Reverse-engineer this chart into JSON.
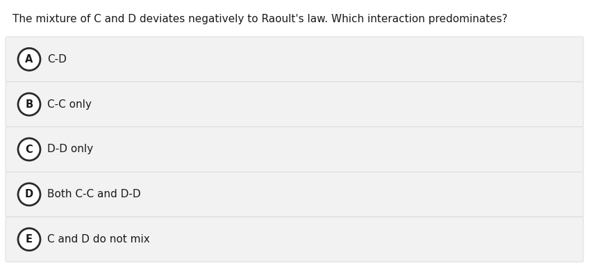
{
  "title": "The mixture of C and D deviates negatively to Raoult's law. Which interaction predominates?",
  "title_fontsize": 11.0,
  "title_color": "#1a1a1a",
  "background_color": "#ffffff",
  "option_bg_color": "#f2f2f2",
  "option_border_color": "#d8d8d8",
  "options": [
    {
      "label": "A",
      "text": "C-D"
    },
    {
      "label": "B",
      "text": "C-C only"
    },
    {
      "label": "C",
      "text": "D-D only"
    },
    {
      "label": "D",
      "text": "Both C-C and D-D"
    },
    {
      "label": "E",
      "text": "C and D do not mix"
    }
  ],
  "circle_edge_color": "#2a2a2a",
  "circle_face_color": "#ffffff",
  "circle_linewidth": 2.0,
  "label_fontsize": 10.5,
  "text_fontsize": 11.0,
  "text_color": "#1a1a1a",
  "fig_width": 8.48,
  "fig_height": 3.8,
  "dpi": 100
}
